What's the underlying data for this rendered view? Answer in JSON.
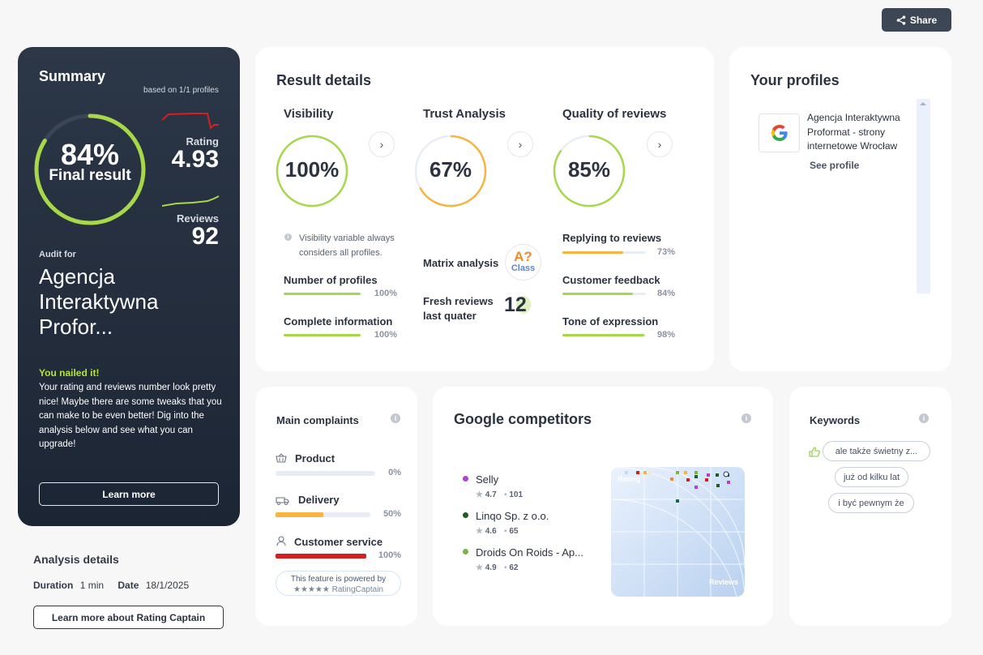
{
  "share": {
    "label": "Share"
  },
  "summary": {
    "title": "Summary",
    "based_on": "based on 1/1 profiles",
    "final_percent": "84%",
    "final_label": "Final result",
    "final_value": 0.84,
    "rating_label": "Rating",
    "rating_value": "4.93",
    "reviews_label": "Reviews",
    "reviews_value": "92",
    "audit_for": "Audit for",
    "company_name": "Agencja Interaktywna Profor...",
    "nailed_title": "You nailed it!",
    "nailed_text": "Your rating and reviews number look pretty nice! Maybe there are some tweaks that you can make to be even better! Dig into the analysis below and see what you can upgrade!",
    "learn_more": "Learn more"
  },
  "analysis": {
    "title": "Analysis details",
    "duration_label": "Duration",
    "duration_value": "1 min",
    "date_label": "Date",
    "date_value": "18/1/2025",
    "button": "Learn more about Rating Captain"
  },
  "result_details": {
    "title": "Result details",
    "visibility": {
      "title": "Visibility",
      "percent": "100%",
      "value": 1.0,
      "note": "Visibility variable always considers all profiles.",
      "metrics": [
        {
          "label": "Number of profiles",
          "percent": "100%",
          "value": 1.0
        },
        {
          "label": "Complete information",
          "percent": "100%",
          "value": 1.0
        }
      ]
    },
    "trust": {
      "title": "Trust Analysis",
      "percent": "67%",
      "value": 0.67,
      "matrix_label": "Matrix analysis",
      "matrix_badge_top": "A?",
      "matrix_badge_bottom": "Class",
      "fresh_label": "Fresh reviews last quater",
      "fresh_value": "12"
    },
    "quality": {
      "title": "Quality of reviews",
      "percent": "85%",
      "value": 0.85,
      "metrics": [
        {
          "label": "Replying to reviews",
          "percent": "73%",
          "value": 0.73
        },
        {
          "label": "Customer feedback",
          "percent": "84%",
          "value": 0.84
        },
        {
          "label": "Tone of expression",
          "percent": "98%",
          "value": 0.98
        }
      ]
    }
  },
  "profiles": {
    "title": "Your profiles",
    "items": [
      {
        "name": "Agencja Interaktywna Proformat - strony internetowe Wrocław",
        "link": "See profile"
      }
    ]
  },
  "complaints": {
    "title": "Main complaints",
    "items": [
      {
        "label": "Product",
        "percent": "0%",
        "value": 0.0
      },
      {
        "label": "Delivery",
        "percent": "50%",
        "value": 0.5
      },
      {
        "label": "Customer service",
        "percent": "100%",
        "value": 1.0
      }
    ],
    "powered_line1": "This feature is powered by",
    "powered_line2": "★★★★★ RatingCaptain"
  },
  "competitors": {
    "title": "Google competitors",
    "items": [
      {
        "name": "Selly",
        "rating": "4.7",
        "reviews": "101",
        "color": "#b23fd6"
      },
      {
        "name": "Linqo Sp. z o.o.",
        "rating": "4.6",
        "reviews": "65",
        "color": "#1b5e20"
      },
      {
        "name": "Droids On Roids - Ap...",
        "rating": "4.9",
        "reviews": "62",
        "color": "#7cb342"
      }
    ],
    "plot_y_label": "Rating",
    "plot_x_label": "Reviews"
  },
  "keywords": {
    "title": "Keywords",
    "items": [
      "ale także świetny z...",
      "już od kilku lat",
      "i być pewnym że"
    ]
  },
  "colors": {
    "green": "#a6d84a",
    "orange": "#f7b441",
    "red": "#d42020",
    "dark": "#2b3240"
  }
}
